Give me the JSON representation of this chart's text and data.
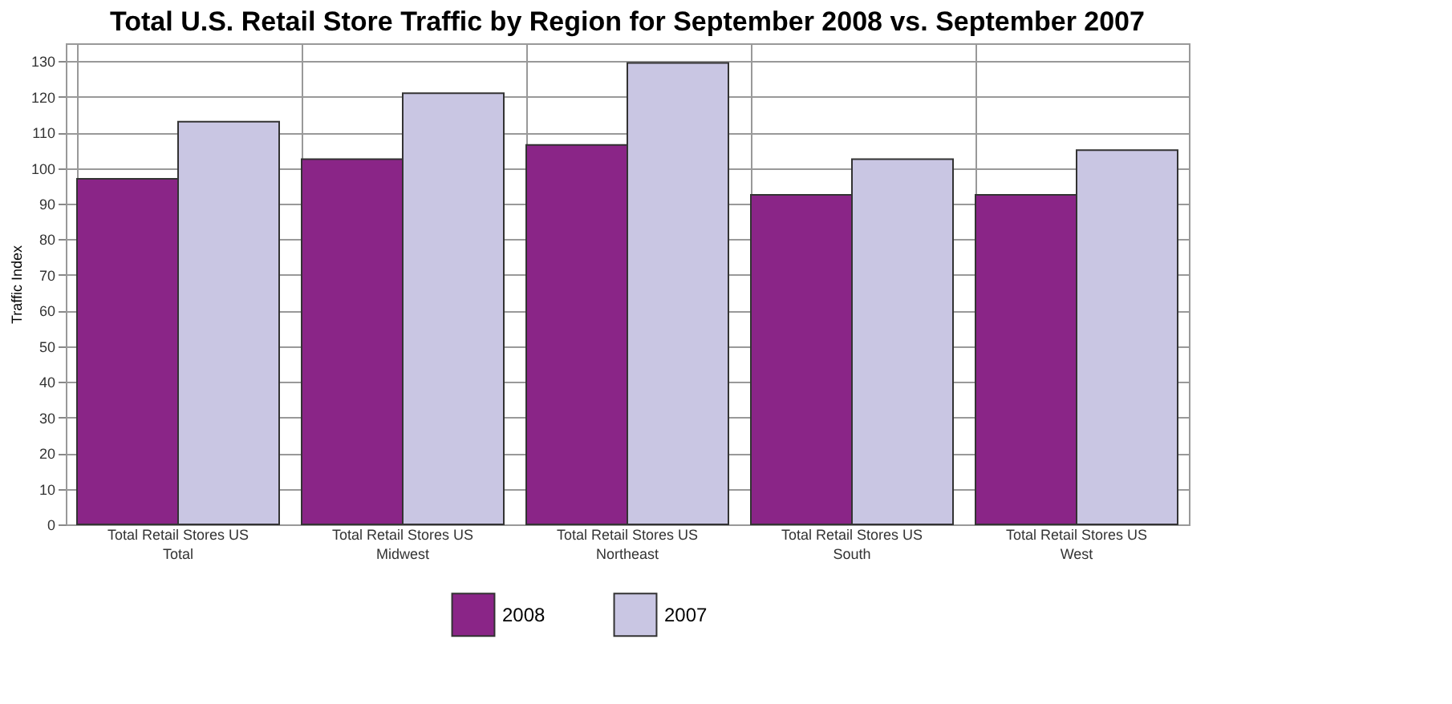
{
  "chart_data": {
    "type": "bar",
    "title": "Total U.S. Retail Store Traffic by Region for September 2008 vs. September 2007",
    "ylabel": "Traffic Index",
    "categories": [
      "Total Retail Stores US\nTotal",
      "Total Retail Stores US\nMidwest",
      "Total Retail Stores US\nNortheast",
      "Total Retail Stores US\nSouth",
      "Total Retail Stores US\nWest"
    ],
    "series": [
      {
        "name": "2008",
        "color": "#8a2587",
        "values": [
          97,
          102.5,
          106.5,
          92.5,
          92.5
        ]
      },
      {
        "name": "2007",
        "color": "#c9c6e3",
        "values": [
          113,
          121,
          129.5,
          102.5,
          105
        ]
      }
    ],
    "ylim": [
      0,
      135
    ],
    "yticks": [
      0,
      10,
      20,
      30,
      40,
      50,
      60,
      70,
      80,
      90,
      100,
      110,
      120,
      130
    ],
    "grid": true,
    "legend": "bottom"
  }
}
